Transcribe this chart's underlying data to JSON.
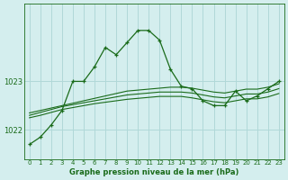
{
  "title": "Graphe pression niveau de la mer (hPa)",
  "background_color": "#d4eeee",
  "grid_color": "#b0d8d8",
  "line_color": "#1a6b1a",
  "ylim": [
    1021.4,
    1024.6
  ],
  "yticks": [
    1022,
    1023
  ],
  "xlim": [
    -0.5,
    23.5
  ],
  "line_main": [
    1021.7,
    1021.85,
    1022.1,
    1022.4,
    1023.0,
    1023.0,
    1023.3,
    1023.7,
    1023.55,
    1023.8,
    1024.05,
    1024.05,
    1023.85,
    1023.25,
    1022.9,
    1022.85,
    1022.6,
    1022.5,
    1022.5,
    1022.8,
    1022.6,
    1022.7,
    1022.85,
    1023.0
  ],
  "line_band1": [
    1022.35,
    1022.4,
    1022.45,
    1022.5,
    1022.55,
    1022.6,
    1022.65,
    1022.7,
    1022.75,
    1022.8,
    1022.82,
    1022.84,
    1022.86,
    1022.88,
    1022.88,
    1022.86,
    1022.82,
    1022.78,
    1022.76,
    1022.8,
    1022.84,
    1022.84,
    1022.88,
    1022.95
  ],
  "line_band2": [
    1022.3,
    1022.36,
    1022.42,
    1022.48,
    1022.52,
    1022.56,
    1022.6,
    1022.64,
    1022.68,
    1022.72,
    1022.74,
    1022.76,
    1022.78,
    1022.78,
    1022.78,
    1022.76,
    1022.72,
    1022.68,
    1022.66,
    1022.7,
    1022.74,
    1022.74,
    1022.78,
    1022.85
  ],
  "line_band3": [
    1022.25,
    1022.3,
    1022.36,
    1022.42,
    1022.46,
    1022.5,
    1022.54,
    1022.57,
    1022.6,
    1022.63,
    1022.65,
    1022.67,
    1022.69,
    1022.69,
    1022.69,
    1022.66,
    1022.62,
    1022.58,
    1022.56,
    1022.6,
    1022.64,
    1022.64,
    1022.68,
    1022.75
  ],
  "title_fontsize": 6,
  "tick_fontsize": 5,
  "ytick_fontsize": 6
}
